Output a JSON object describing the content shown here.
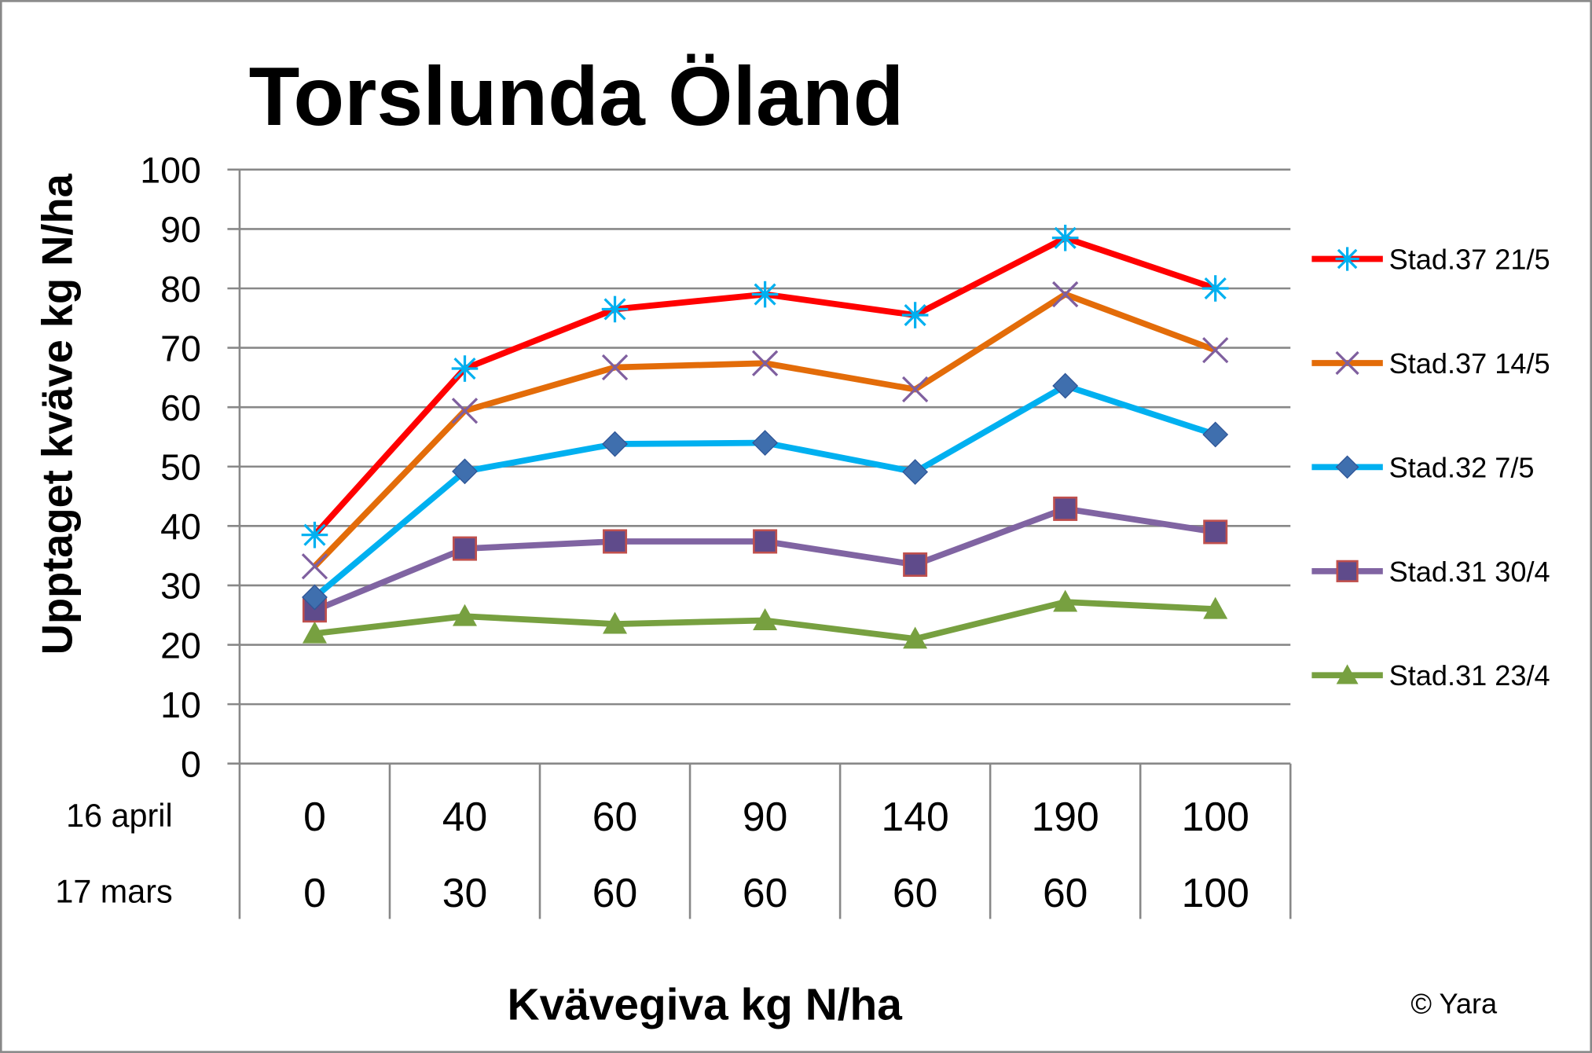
{
  "chart_data": {
    "type": "line",
    "title": "Torslunda Öland",
    "xlabel": "Kvävegiva kg N/ha",
    "ylabel": "Upptaget kväve kg N/ha",
    "ylim": [
      0,
      100
    ],
    "yticks": [
      "0",
      "10",
      "20",
      "30",
      "40",
      "50",
      "60",
      "70",
      "80",
      "90",
      "100"
    ],
    "grid": true,
    "legend_position": "right",
    "category_rows": [
      {
        "label": "16 april",
        "values": [
          "0",
          "40",
          "60",
          "90",
          "140",
          "190",
          "100"
        ]
      },
      {
        "label": "17 mars",
        "values": [
          "0",
          "30",
          "60",
          "60",
          "60",
          "60",
          "100"
        ]
      }
    ],
    "series": [
      {
        "name": "Stad.37 21/5",
        "color": "#ff0000",
        "marker": "asterisk",
        "marker_color": "#00b0f0",
        "values": [
          38.5,
          66.5,
          76.5,
          79,
          75.5,
          88.5,
          80
        ]
      },
      {
        "name": "Stad.37 14/5",
        "color": "#e36c09",
        "marker": "x",
        "marker_color": "#7f5f9f",
        "values": [
          33.2,
          59.4,
          66.7,
          67.4,
          63,
          79,
          69.6
        ]
      },
      {
        "name": "Stad.32 7/5",
        "color": "#00b0f0",
        "marker": "diamond",
        "marker_color": "#3f6fae",
        "values": [
          28,
          49.2,
          53.8,
          54,
          49.1,
          63.6,
          55.4
        ]
      },
      {
        "name": "Stad.31 30/4",
        "color": "#8064a2",
        "marker": "square",
        "marker_color": "#5f4b8b",
        "values": [
          25.8,
          36.2,
          37.4,
          37.4,
          33.5,
          42.9,
          39
        ]
      },
      {
        "name": "Stad.31 23/4",
        "color": "#77a040",
        "marker": "triangle",
        "marker_color": "#77a040",
        "values": [
          21.9,
          24.8,
          23.5,
          24.1,
          21,
          27.2,
          26
        ]
      }
    ],
    "copyright": "© Yara"
  }
}
